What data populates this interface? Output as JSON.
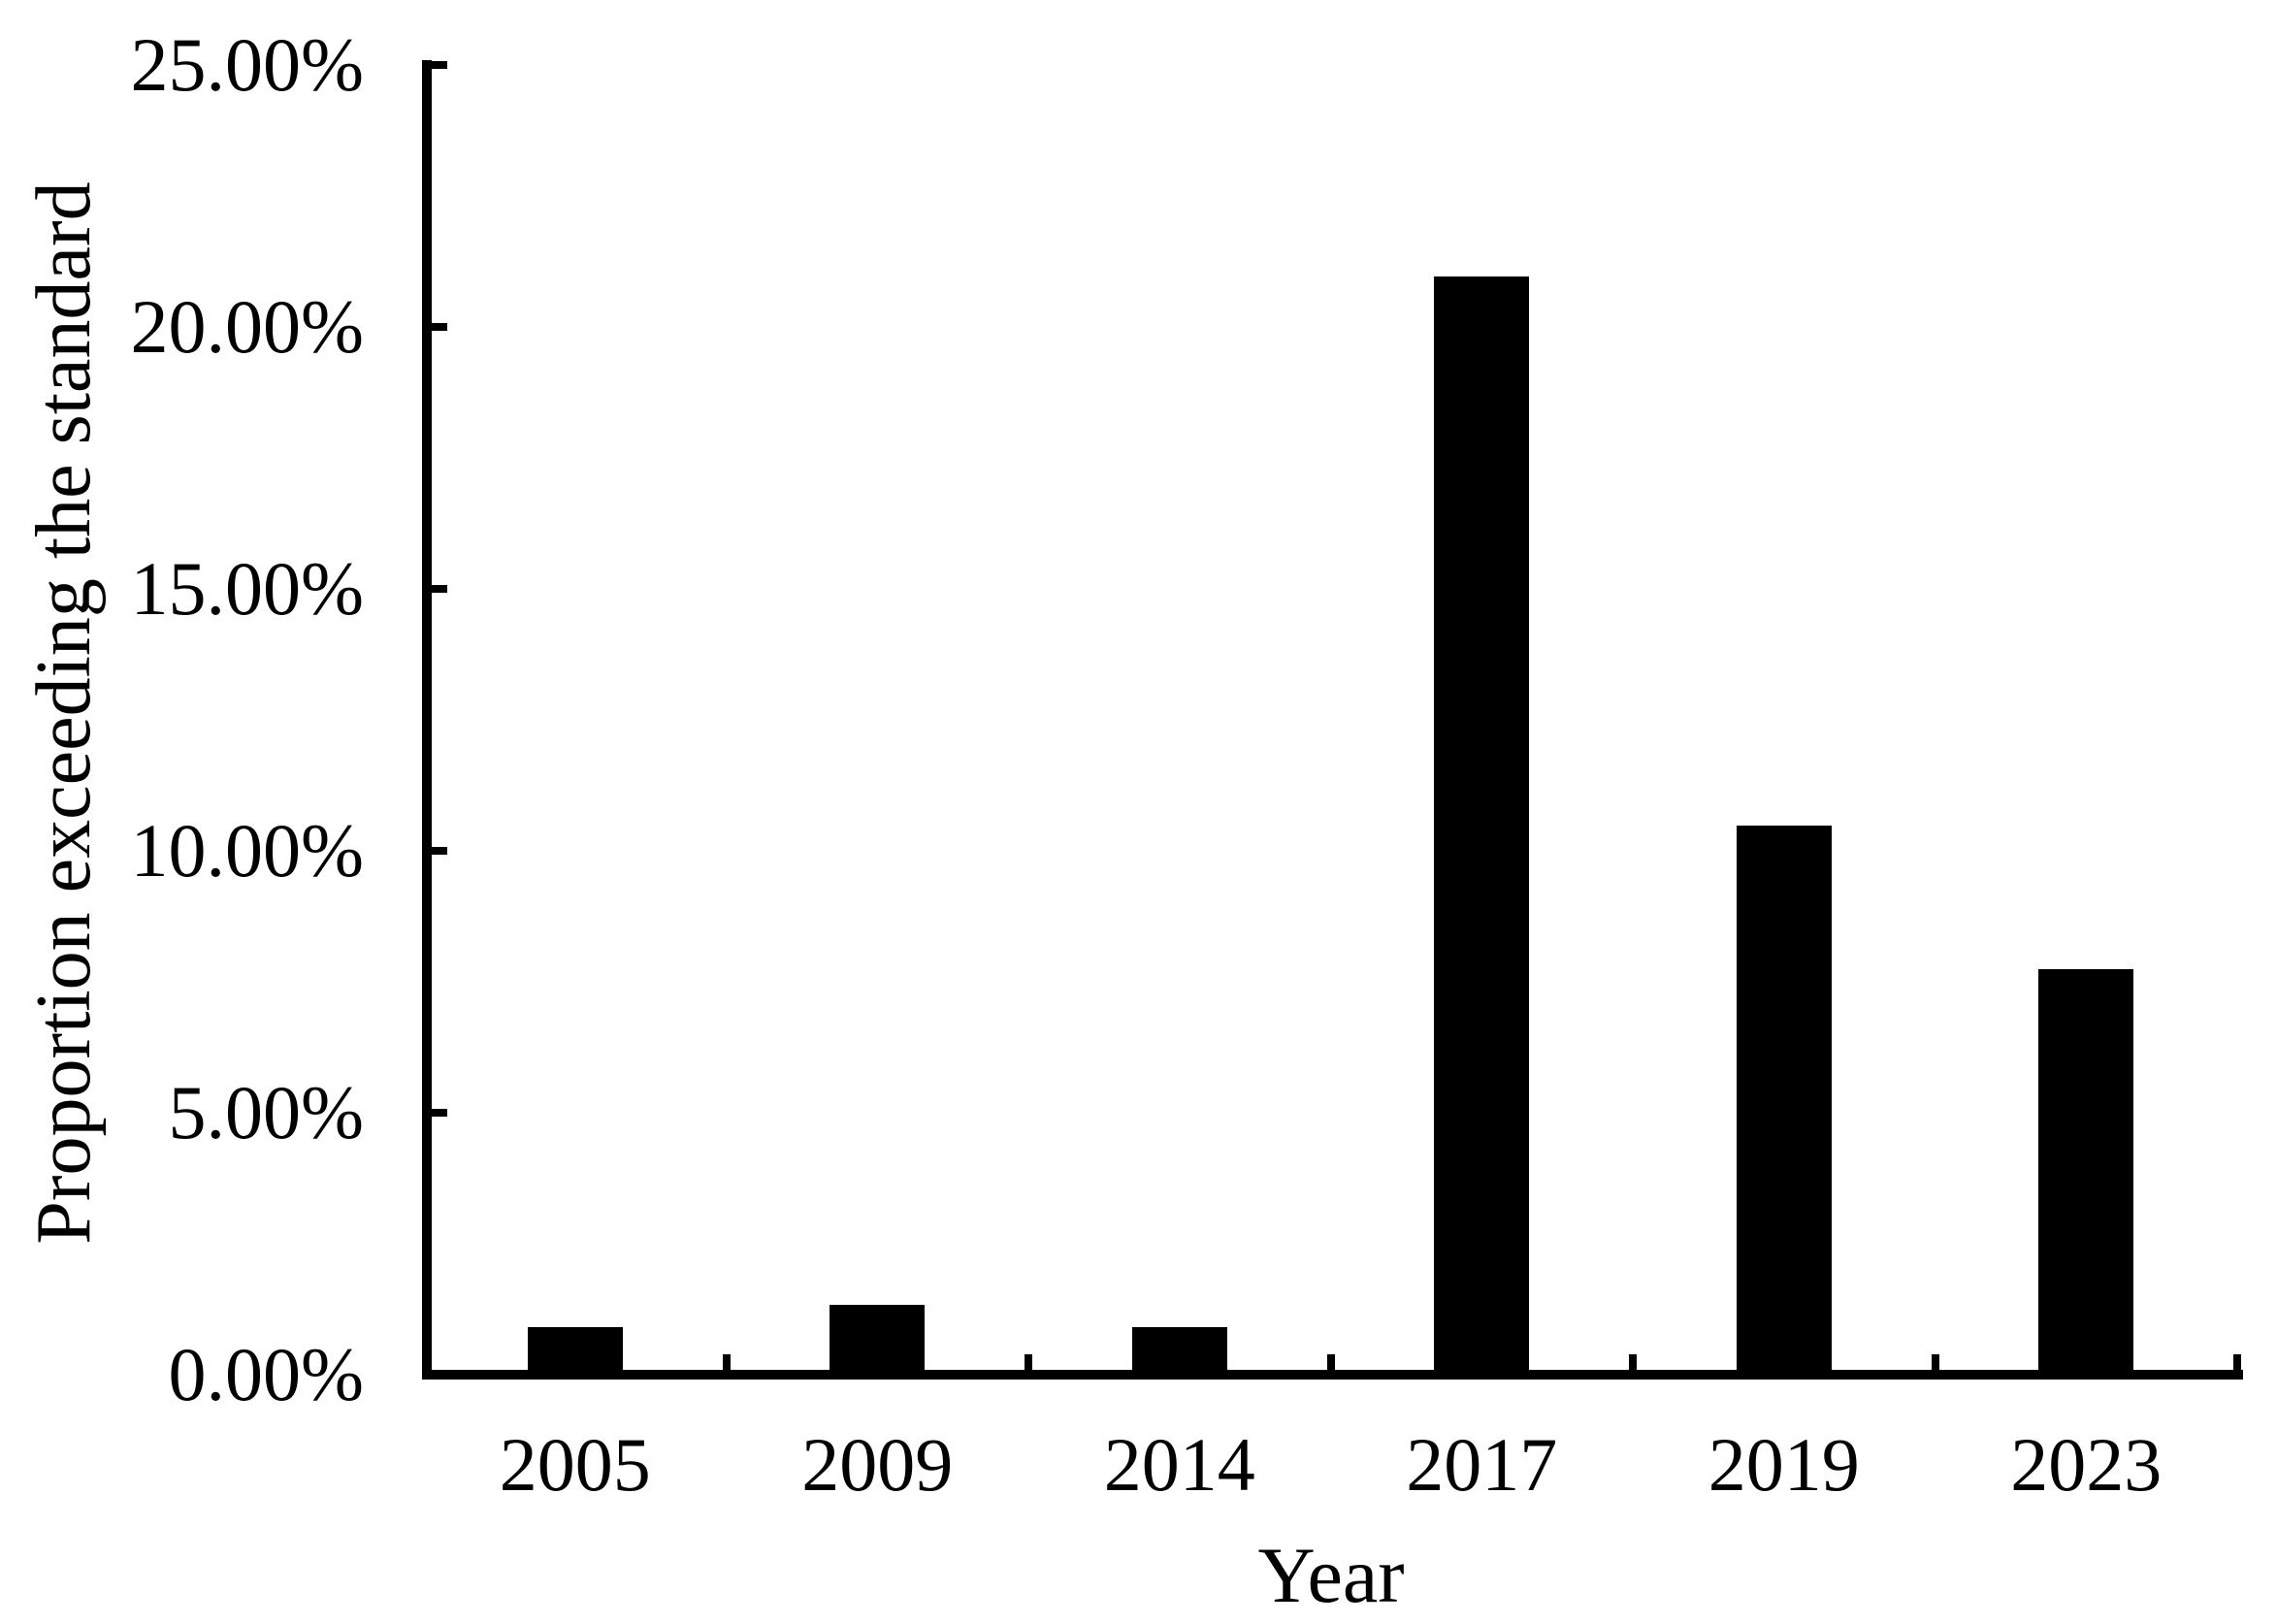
{
  "chart_data": {
    "type": "bar",
    "title": "",
    "categories": [
      "2005",
      "2009",
      "2014",
      "2017",
      "2019",
      "2023"
    ],
    "values": [
      0.9,
      1.33,
      0.9,
      20.96,
      10.48,
      7.74
    ],
    "xlabel": "Year",
    "ylabel": "Proportion exceeding the standard",
    "ylim": [
      0,
      25
    ],
    "ytick_step": 5,
    "ytick_labels": [
      "0.00%",
      "5.00%",
      "10.00%",
      "15.00%",
      "20.00%",
      "25.00%"
    ],
    "bar_color": "#000000",
    "axis_color": "#000000",
    "background": "#ffffff",
    "grid": false,
    "legend_position": "none"
  }
}
